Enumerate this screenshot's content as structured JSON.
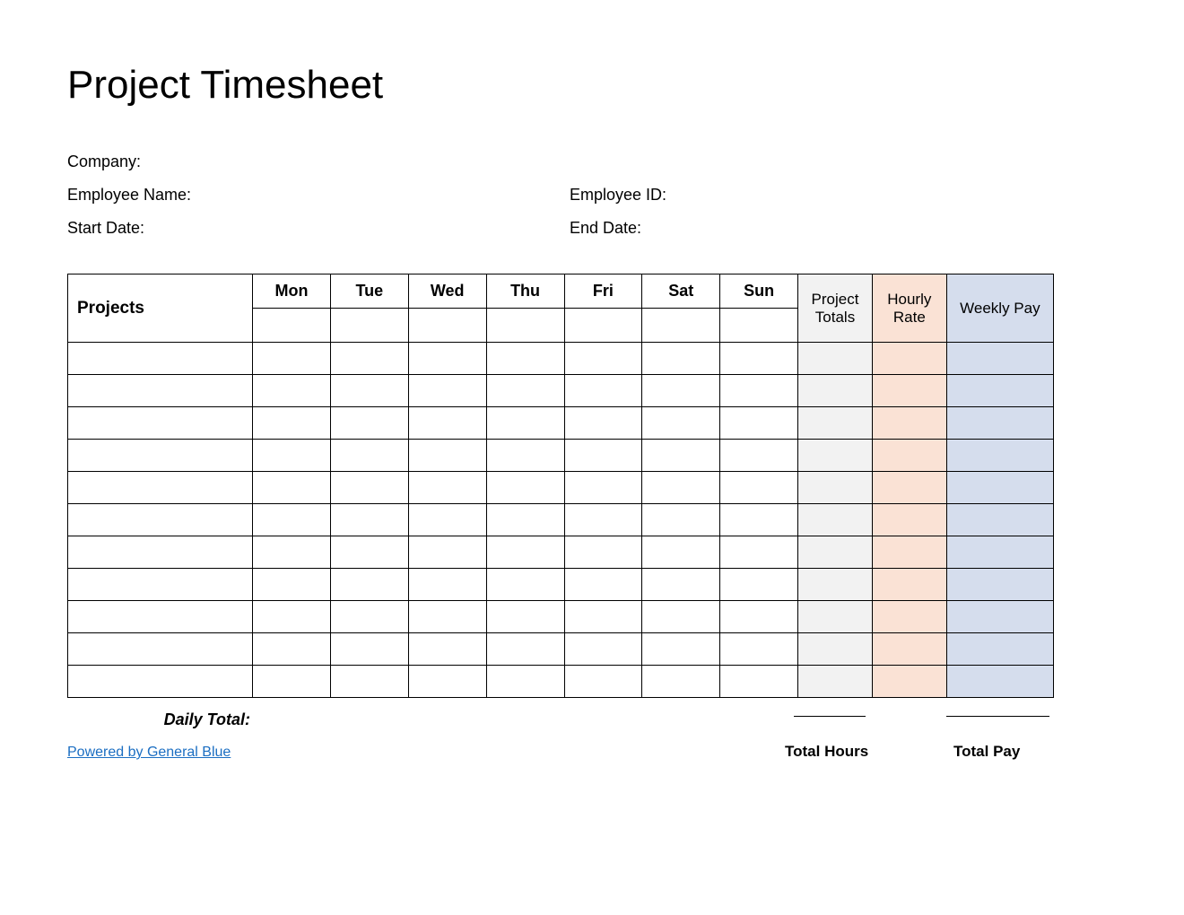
{
  "title": "Project Timesheet",
  "labels": {
    "company": "Company:",
    "employee_name": "Employee Name:",
    "employee_id": "Employee ID:",
    "start_date": "Start Date:",
    "end_date": "End Date:",
    "daily_total": "Daily Total:",
    "total_hours": "Total Hours",
    "total_pay": "Total Pay",
    "attribution": "Powered by General Blue"
  },
  "table": {
    "columns": {
      "projects": "Projects",
      "days": [
        "Mon",
        "Tue",
        "Wed",
        "Thu",
        "Fri",
        "Sat",
        "Sun"
      ],
      "project_totals": "Project Totals",
      "hourly_rate": "Hourly Rate",
      "weekly_pay": "Weekly Pay"
    },
    "date_row": [
      "",
      "",
      "",
      "",
      "",
      "",
      ""
    ],
    "rows": [
      {
        "project": "",
        "days": [
          "",
          "",
          "",
          "",
          "",
          "",
          ""
        ],
        "total": "",
        "rate": "",
        "pay": ""
      },
      {
        "project": "",
        "days": [
          "",
          "",
          "",
          "",
          "",
          "",
          ""
        ],
        "total": "",
        "rate": "",
        "pay": ""
      },
      {
        "project": "",
        "days": [
          "",
          "",
          "",
          "",
          "",
          "",
          ""
        ],
        "total": "",
        "rate": "",
        "pay": ""
      },
      {
        "project": "",
        "days": [
          "",
          "",
          "",
          "",
          "",
          "",
          ""
        ],
        "total": "",
        "rate": "",
        "pay": ""
      },
      {
        "project": "",
        "days": [
          "",
          "",
          "",
          "",
          "",
          "",
          ""
        ],
        "total": "",
        "rate": "",
        "pay": ""
      },
      {
        "project": "",
        "days": [
          "",
          "",
          "",
          "",
          "",
          "",
          ""
        ],
        "total": "",
        "rate": "",
        "pay": ""
      },
      {
        "project": "",
        "days": [
          "",
          "",
          "",
          "",
          "",
          "",
          ""
        ],
        "total": "",
        "rate": "",
        "pay": ""
      },
      {
        "project": "",
        "days": [
          "",
          "",
          "",
          "",
          "",
          "",
          ""
        ],
        "total": "",
        "rate": "",
        "pay": ""
      },
      {
        "project": "",
        "days": [
          "",
          "",
          "",
          "",
          "",
          "",
          ""
        ],
        "total": "",
        "rate": "",
        "pay": ""
      },
      {
        "project": "",
        "days": [
          "",
          "",
          "",
          "",
          "",
          "",
          ""
        ],
        "total": "",
        "rate": "",
        "pay": ""
      },
      {
        "project": "",
        "days": [
          "",
          "",
          "",
          "",
          "",
          "",
          ""
        ],
        "total": "",
        "rate": "",
        "pay": ""
      }
    ],
    "colors": {
      "project_totals_bg": "#f2f2f2",
      "hourly_rate_bg": "#fae2d5",
      "weekly_pay_bg": "#d5dded",
      "border": "#000000",
      "link": "#1b6ec2"
    }
  }
}
